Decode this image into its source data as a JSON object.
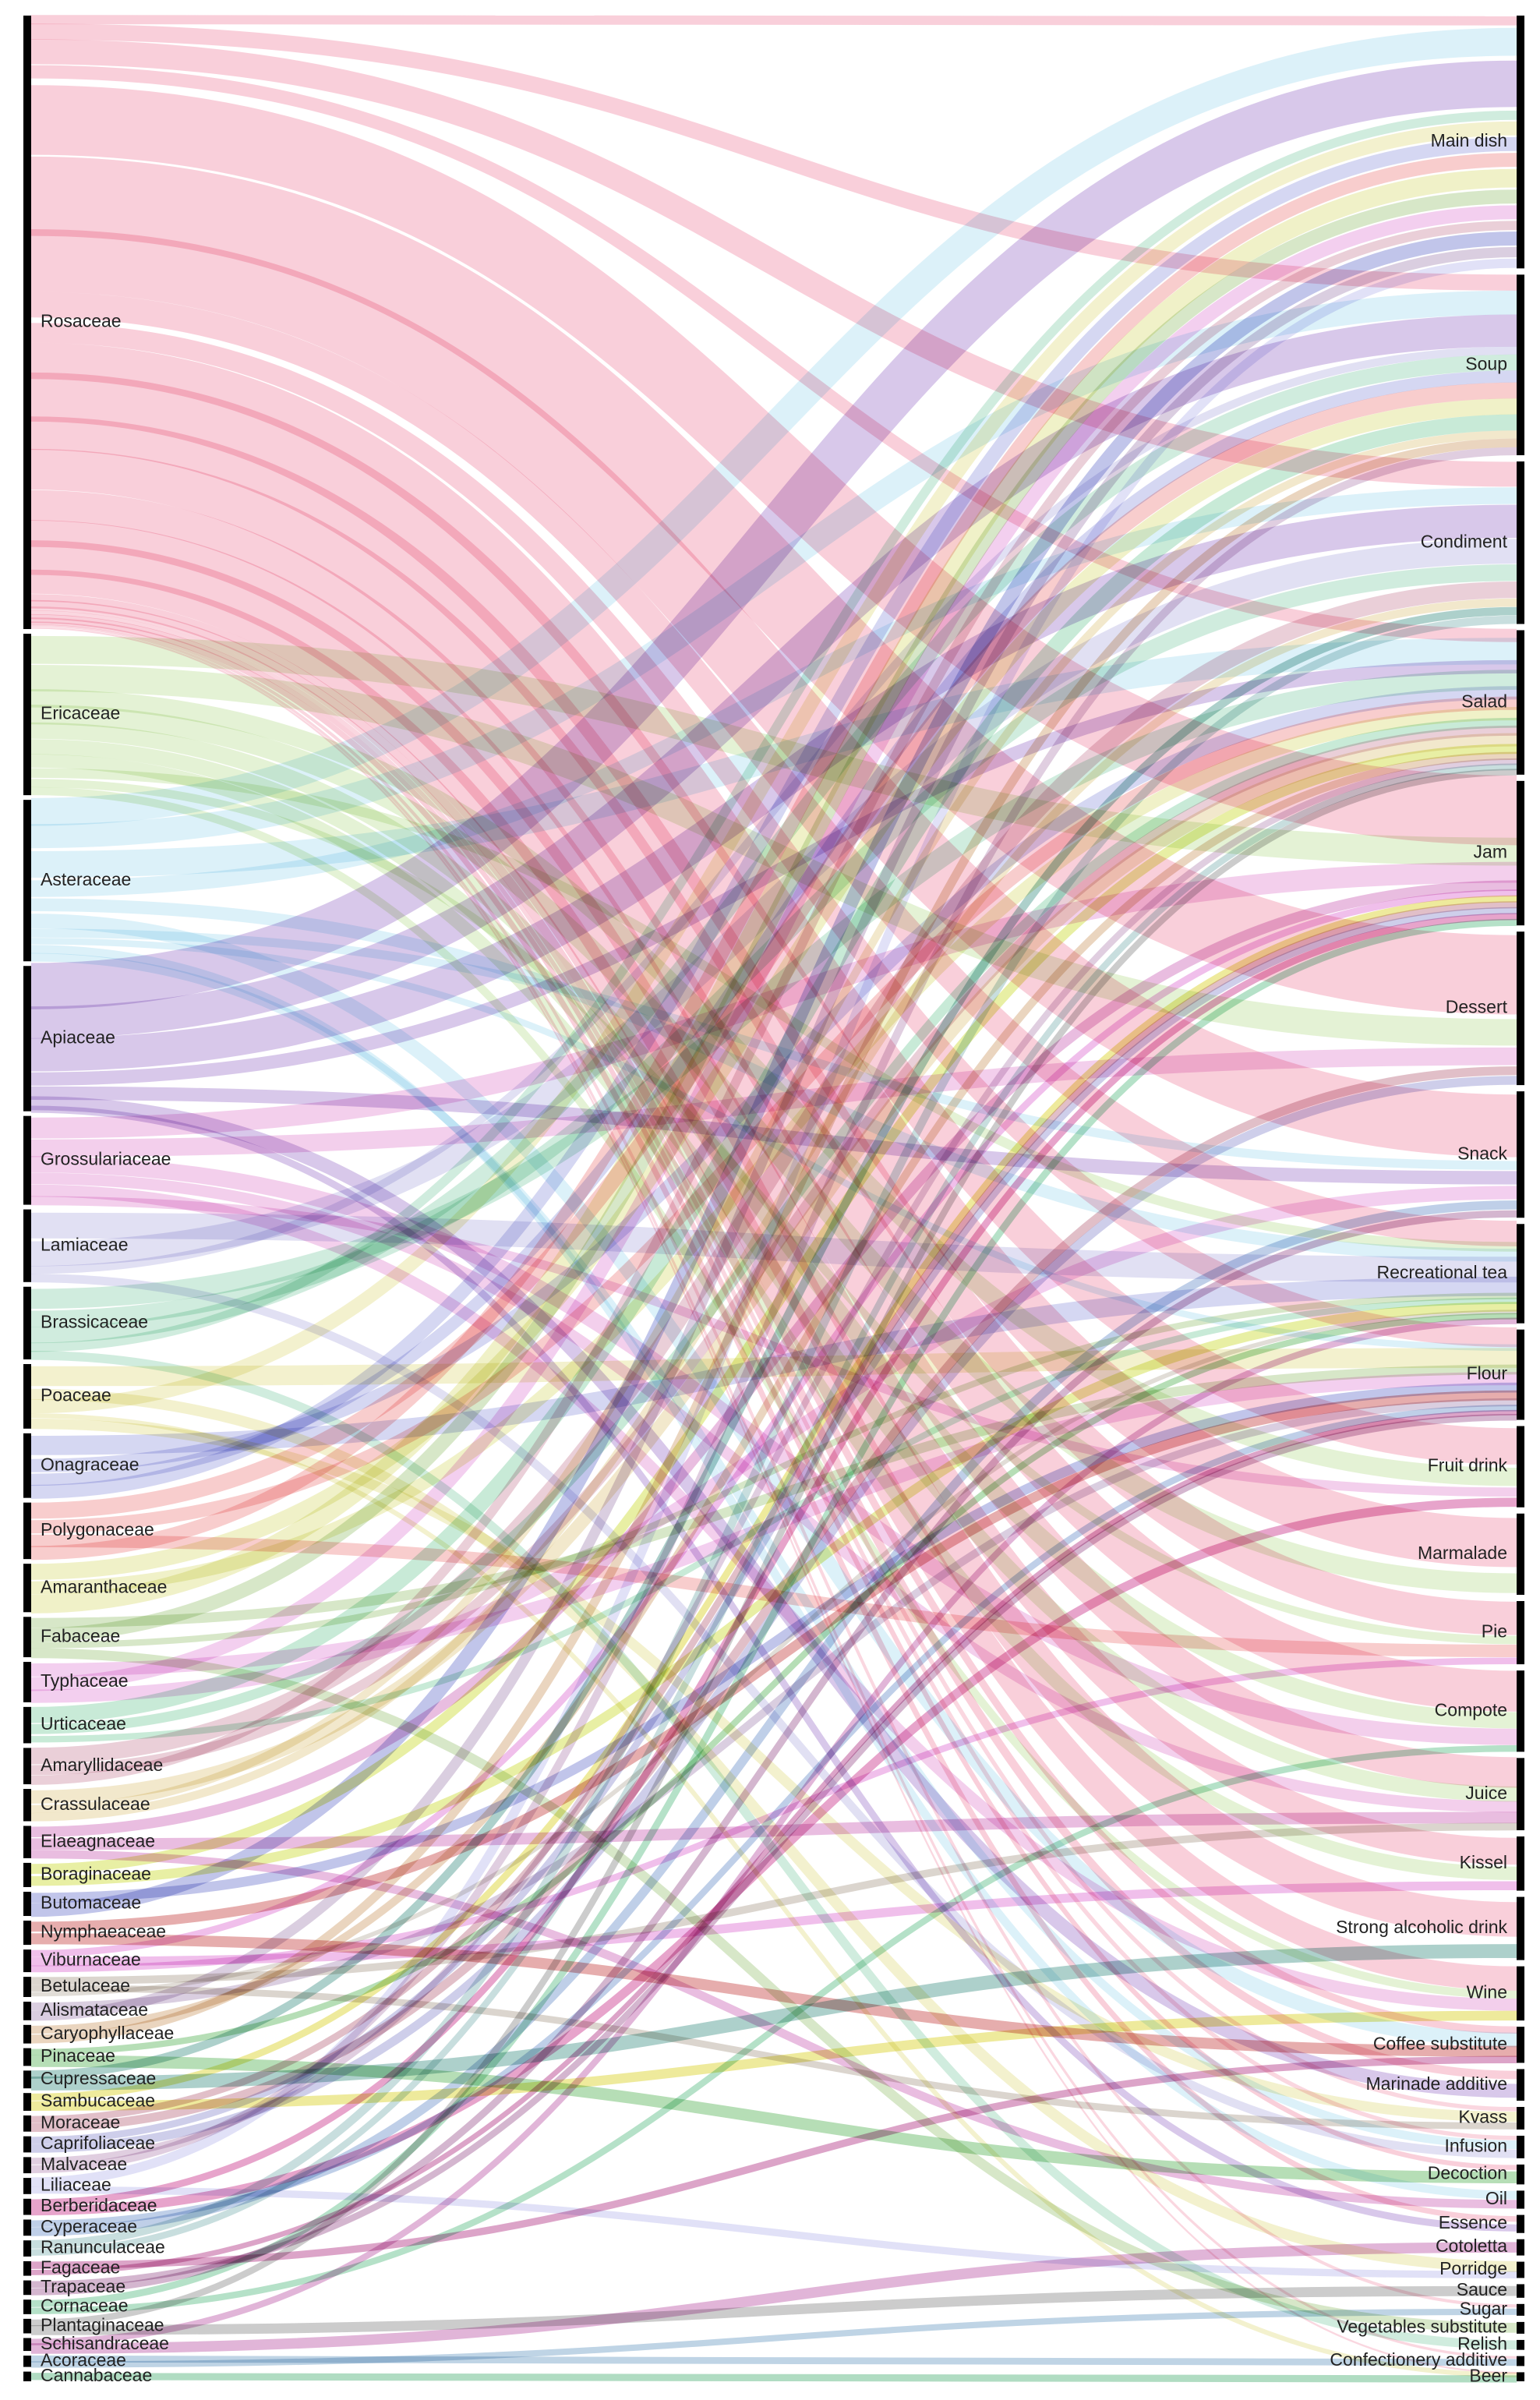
{
  "chart_data": {
    "type": "sankey",
    "families": [
      "Rosaceae",
      "Ericaceae",
      "Asteraceae",
      "Apiaceae",
      "Grossulariaceae",
      "Lamiaceae",
      "Brassicaceae",
      "Poaceae",
      "Onagraceae",
      "Polygonaceae",
      "Amaranthaceae",
      "Fabaceae",
      "Typhaceae",
      "Urticaceae",
      "Amaryllidaceae",
      "Crassulaceae",
      "Elaeagnaceae",
      "Boraginaceae",
      "Butomaceae",
      "Nymphaeaceae",
      "Viburnaceae",
      "Betulaceae",
      "Alismataceae",
      "Caryophyllaceae",
      "Pinaceae",
      "Cupressaceae",
      "Sambucaceae",
      "Moraceae",
      "Caprifoliaceae",
      "Malvaceae",
      "Liliaceae",
      "Berberidaceae",
      "Cyperaceae",
      "Ranunculaceae",
      "Fagaceae",
      "Trapaceae",
      "Cornaceae",
      "Plantaginaceae",
      "Schisandraceae",
      "Acoraceae",
      "Cannabaceae"
    ],
    "family_weights": [
      76,
      20,
      20,
      18,
      11,
      9,
      9,
      8,
      8,
      7,
      6,
      5,
      5,
      4.5,
      4.5,
      4,
      4,
      3,
      3,
      3,
      2.8,
      2.5,
      2.3,
      2.3,
      2.2,
      2.2,
      2.2,
      2,
      2,
      2,
      2,
      2,
      2,
      2,
      1.8,
      1.8,
      1.8,
      1.8,
      1.6,
      1.4,
      1.2
    ],
    "family_colors": [
      "#f4a7bb",
      "#cde8b2",
      "#bfe6f4",
      "#b89ad8",
      "#eaa7dc",
      "#c9c6ea",
      "#a9dcc2",
      "#e9e6a6",
      "#b3b7e8",
      "#f2a4a4",
      "#e3e69a",
      "#b6d39a",
      "#eaa7e2",
      "#9bd8b7",
      "#d8a7b8",
      "#e7d6a2",
      "#d786c6",
      "#d6e25a",
      "#8e96d8",
      "#d26a6a",
      "#e48adb",
      "#bdb3a6",
      "#bca5c6",
      "#d9b28a",
      "#7ac27a",
      "#6aaaa0",
      "#e0d84a",
      "#c98a9a",
      "#a6a6d8",
      "#c7a6c6",
      "#c8c8f0",
      "#d45aa0",
      "#8aa8d6",
      "#9ac2c2",
      "#c05a9a",
      "#b07aa8",
      "#78c89a",
      "#a2a2a2",
      "#c878b8",
      "#8ab0d0",
      "#70c090"
    ],
    "dishes": [
      "Main dish",
      "Soup",
      "Condiment",
      "Salad",
      "Jam",
      "Dessert",
      "Snack",
      "Recreational tea",
      "Flour",
      "Fruit drink",
      "Marmalade",
      "Pie",
      "Compote",
      "Juice",
      "Kissel",
      "Strong alcoholic drink",
      "Wine",
      "Coffee substitute",
      "Marinade additive",
      "Kvass",
      "Infusion",
      "Decoction",
      "Oil",
      "Essence",
      "Cotoletta",
      "Porridge",
      "Sauce",
      "Sugar",
      "Vegetables substitute",
      "Relish",
      "Confectionery additive",
      "Beer"
    ],
    "dish_weights": [
      28,
      20,
      18,
      16,
      16,
      17,
      14,
      11,
      10,
      9,
      9,
      7,
      9,
      8,
      6,
      7,
      6,
      4,
      3.5,
      2.5,
      2.5,
      2.2,
      2,
      2,
      1.8,
      1.8,
      1.5,
      1.3,
      1.3,
      1.1,
      1.1,
      1
    ],
    "flows": [
      [
        "Rosaceae",
        "Main dish",
        1
      ],
      [
        "Rosaceae",
        "Soup",
        2
      ],
      [
        "Rosaceae",
        "Condiment",
        3
      ],
      [
        "Rosaceae",
        "Salad",
        2
      ],
      [
        "Rosaceae",
        "Jam",
        10
      ],
      [
        "Rosaceae",
        "Dessert",
        9
      ],
      [
        "Rosaceae",
        "Snack",
        7
      ],
      [
        "Rosaceae",
        "Recreational tea",
        4
      ],
      [
        "Rosaceae",
        "Flour",
        3
      ],
      [
        "Rosaceae",
        "Fruit drink",
        4
      ],
      [
        "Rosaceae",
        "Marmalade",
        5
      ],
      [
        "Rosaceae",
        "Pie",
        4
      ],
      [
        "Rosaceae",
        "Compote",
        5
      ],
      [
        "Rosaceae",
        "Juice",
        4
      ],
      [
        "Rosaceae",
        "Kissel",
        3
      ],
      [
        "Rosaceae",
        "Strong alcoholic drink",
        3
      ],
      [
        "Rosaceae",
        "Wine",
        3
      ],
      [
        "Rosaceae",
        "Coffee substitute",
        1
      ],
      [
        "Rosaceae",
        "Marinade additive",
        0.6
      ],
      [
        "Rosaceae",
        "Kvass",
        0.5
      ],
      [
        "Rosaceae",
        "Infusion",
        0.5
      ],
      [
        "Rosaceae",
        "Decoction",
        0.5
      ],
      [
        "Rosaceae",
        "Essence",
        0.4
      ],
      [
        "Rosaceae",
        "Sugar",
        0.3
      ],
      [
        "Rosaceae",
        "Confectionery additive",
        0.3
      ],
      [
        "Rosaceae",
        "Beer",
        0.3
      ],
      [
        "Ericaceae",
        "Jam",
        4
      ],
      [
        "Ericaceae",
        "Dessert",
        3
      ],
      [
        "Ericaceae",
        "Fruit drink",
        2
      ],
      [
        "Ericaceae",
        "Marmalade",
        2
      ],
      [
        "Ericaceae",
        "Compote",
        2
      ],
      [
        "Ericaceae",
        "Juice",
        2
      ],
      [
        "Ericaceae",
        "Kissel",
        1.5
      ],
      [
        "Ericaceae",
        "Recreational tea",
        1.5
      ],
      [
        "Ericaceae",
        "Pie",
        1
      ],
      [
        "Ericaceae",
        "Wine",
        1
      ],
      [
        "Asteraceae",
        "Main dish",
        3
      ],
      [
        "Asteraceae",
        "Soup",
        3
      ],
      [
        "Asteraceae",
        "Salad",
        4
      ],
      [
        "Asteraceae",
        "Condiment",
        2
      ],
      [
        "Asteraceae",
        "Recreational tea",
        2
      ],
      [
        "Asteraceae",
        "Coffee substitute",
        2
      ],
      [
        "Asteraceae",
        "Snack",
        1
      ],
      [
        "Asteraceae",
        "Flour",
        1
      ],
      [
        "Asteraceae",
        "Oil",
        1
      ],
      [
        "Asteraceae",
        "Infusion",
        1
      ],
      [
        "Apiaceae",
        "Main dish",
        5
      ],
      [
        "Apiaceae",
        "Soup",
        4
      ],
      [
        "Apiaceae",
        "Condiment",
        4
      ],
      [
        "Apiaceae",
        "Salad",
        2
      ],
      [
        "Apiaceae",
        "Snack",
        1.5
      ],
      [
        "Apiaceae",
        "Marinade additive",
        1
      ],
      [
        "Apiaceae",
        "Essence",
        0.5
      ],
      [
        "Grossulariaceae",
        "Jam",
        3
      ],
      [
        "Grossulariaceae",
        "Dessert",
        2
      ],
      [
        "Grossulariaceae",
        "Compote",
        2
      ],
      [
        "Grossulariaceae",
        "Juice",
        1.5
      ],
      [
        "Grossulariaceae",
        "Wine",
        1.5
      ],
      [
        "Grossulariaceae",
        "Fruit drink",
        1
      ],
      [
        "Lamiaceae",
        "Recreational tea",
        4
      ],
      [
        "Lamiaceae",
        "Condiment",
        3
      ],
      [
        "Lamiaceae",
        "Soup",
        1
      ],
      [
        "Lamiaceae",
        "Infusion",
        1
      ],
      [
        "Brassicaceae",
        "Salad",
        3
      ],
      [
        "Brassicaceae",
        "Condiment",
        2
      ],
      [
        "Brassicaceae",
        "Soup",
        2
      ],
      [
        "Brassicaceae",
        "Main dish",
        1
      ],
      [
        "Brassicaceae",
        "Relish",
        1
      ],
      [
        "Poaceae",
        "Flour",
        3
      ],
      [
        "Poaceae",
        "Porridge",
        1.5
      ],
      [
        "Poaceae",
        "Main dish",
        1.5
      ],
      [
        "Poaceae",
        "Beer",
        0.8
      ],
      [
        "Poaceae",
        "Kvass",
        1.2
      ],
      [
        "Onagraceae",
        "Recreational tea",
        3
      ],
      [
        "Onagraceae",
        "Salad",
        2
      ],
      [
        "Onagraceae",
        "Soup",
        1.5
      ],
      [
        "Onagraceae",
        "Main dish",
        1.5
      ],
      [
        "Polygonaceae",
        "Soup",
        2
      ],
      [
        "Polygonaceae",
        "Salad",
        2
      ],
      [
        "Polygonaceae",
        "Pie",
        1.5
      ],
      [
        "Polygonaceae",
        "Main dish",
        1.5
      ],
      [
        "Amaranthaceae",
        "Soup",
        2
      ],
      [
        "Amaranthaceae",
        "Salad",
        2
      ],
      [
        "Amaranthaceae",
        "Main dish",
        2
      ],
      [
        "Fabaceae",
        "Flour",
        1.5
      ],
      [
        "Fabaceae",
        "Main dish",
        1.5
      ],
      [
        "Fabaceae",
        "Recreational tea",
        1
      ],
      [
        "Fabaceae",
        "Vegetables substitute",
        1
      ],
      [
        "Typhaceae",
        "Flour",
        2
      ],
      [
        "Typhaceae",
        "Main dish",
        1.5
      ],
      [
        "Typhaceae",
        "Snack",
        1.5
      ],
      [
        "Urticaceae",
        "Soup",
        2
      ],
      [
        "Urticaceae",
        "Salad",
        1.5
      ],
      [
        "Urticaceae",
        "Recreational tea",
        1
      ],
      [
        "Amaryllidaceae",
        "Condiment",
        2
      ],
      [
        "Amaryllidaceae",
        "Salad",
        1.5
      ],
      [
        "Amaryllidaceae",
        "Main dish",
        1
      ],
      [
        "Crassulaceae",
        "Salad",
        2
      ],
      [
        "Crassulaceae",
        "Soup",
        1
      ],
      [
        "Crassulaceae",
        "Condiment",
        1
      ],
      [
        "Elaeagnaceae",
        "Jam",
        1.5
      ],
      [
        "Elaeagnaceae",
        "Juice",
        1.5
      ],
      [
        "Elaeagnaceae",
        "Oil",
        1
      ],
      [
        "Boraginaceae",
        "Salad",
        1.5
      ],
      [
        "Boraginaceae",
        "Recreational tea",
        1.5
      ],
      [
        "Butomaceae",
        "Flour",
        1.5
      ],
      [
        "Butomaceae",
        "Main dish",
        1.5
      ],
      [
        "Nymphaeaceae",
        "Flour",
        1.5
      ],
      [
        "Nymphaeaceae",
        "Coffee substitute",
        1.5
      ],
      [
        "Viburnaceae",
        "Jam",
        1
      ],
      [
        "Viburnaceae",
        "Kissel",
        1
      ],
      [
        "Viburnaceae",
        "Pie",
        0.8
      ],
      [
        "Betulaceae",
        "Juice",
        1
      ],
      [
        "Betulaceae",
        "Kvass",
        0.8
      ],
      [
        "Betulaceae",
        "Recreational tea",
        0.7
      ],
      [
        "Alismataceae",
        "Flour",
        1.2
      ],
      [
        "Alismataceae",
        "Main dish",
        1.1
      ],
      [
        "Caryophyllaceae",
        "Salad",
        1.2
      ],
      [
        "Caryophyllaceae",
        "Soup",
        1.1
      ],
      [
        "Pinaceae",
        "Recreational tea",
        1
      ],
      [
        "Pinaceae",
        "Decoction",
        1.2
      ],
      [
        "Cupressaceae",
        "Condiment",
        1
      ],
      [
        "Cupressaceae",
        "Strong alcoholic drink",
        1.2
      ],
      [
        "Sambucaceae",
        "Jam",
        1
      ],
      [
        "Sambucaceae",
        "Wine",
        1.2
      ],
      [
        "Moraceae",
        "Jam",
        1
      ],
      [
        "Moraceae",
        "Dessert",
        1
      ],
      [
        "Caprifoliaceae",
        "Jam",
        1
      ],
      [
        "Caprifoliaceae",
        "Dessert",
        1
      ],
      [
        "Malvaceae",
        "Salad",
        1
      ],
      [
        "Malvaceae",
        "Soup",
        1
      ],
      [
        "Liliaceae",
        "Main dish",
        1
      ],
      [
        "Liliaceae",
        "Porridge",
        1
      ],
      [
        "Berberidaceae",
        "Jam",
        1
      ],
      [
        "Berberidaceae",
        "Fruit drink",
        1
      ],
      [
        "Cyperaceae",
        "Flour",
        1
      ],
      [
        "Cyperaceae",
        "Snack",
        1
      ],
      [
        "Ranunculaceae",
        "Condiment",
        1
      ],
      [
        "Ranunculaceae",
        "Salad",
        1
      ],
      [
        "Fagaceae",
        "Coffee substitute",
        1
      ],
      [
        "Fagaceae",
        "Flour",
        0.8
      ],
      [
        "Trapaceae",
        "Flour",
        1
      ],
      [
        "Trapaceae",
        "Snack",
        0.8
      ],
      [
        "Cornaceae",
        "Jam",
        1
      ],
      [
        "Cornaceae",
        "Compote",
        0.8
      ],
      [
        "Plantaginaceae",
        "Salad",
        1
      ],
      [
        "Plantaginaceae",
        "Sauce",
        0.8
      ],
      [
        "Schisandraceae",
        "Recreational tea",
        1
      ],
      [
        "Schisandraceae",
        "Cotoletta",
        0.6
      ],
      [
        "Acoraceae",
        "Confectionery additive",
        0.8
      ],
      [
        "Acoraceae",
        "Sugar",
        0.6
      ],
      [
        "Cannabaceae",
        "Beer",
        1.2
      ]
    ]
  }
}
